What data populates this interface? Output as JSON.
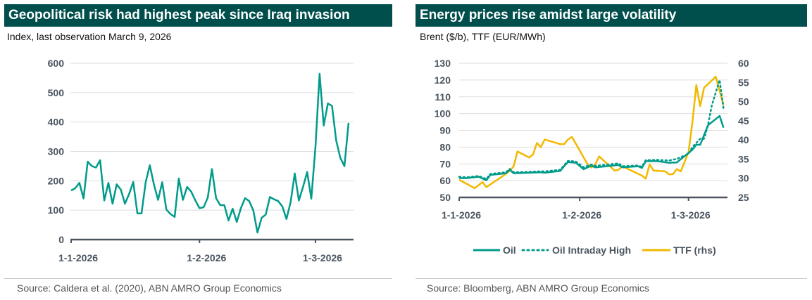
{
  "colors": {
    "header_bg": "#004f4c",
    "teal": "#009b8a",
    "yellow": "#f2b800",
    "axis": "#4a5560",
    "grid": "#dddddd"
  },
  "chart_data": [
    {
      "type": "line",
      "title": "Geopolitical risk had highest peak since Iraq invasion",
      "subtitle": "Index, last observation March 9, 2026",
      "source": "Source: Caldera et al. (2020), ABN AMRO Group Economics",
      "ylim": [
        0,
        600
      ],
      "yticks": [
        "0",
        "100",
        "200",
        "300",
        "400",
        "500",
        "600"
      ],
      "xticks": [
        {
          "date": "2026-01-01",
          "label": "1-1-2026"
        },
        {
          "date": "2026-02-01",
          "label": "1-2-2026"
        },
        {
          "date": "2026-03-01",
          "label": "1-3-2026"
        }
      ],
      "grid": true,
      "start_date": "2026-01-01",
      "series": [
        {
          "color": "#009b8a",
          "values": [
            167,
            175,
            193,
            140,
            265,
            250,
            245,
            270,
            133,
            193,
            122,
            188,
            170,
            122,
            155,
            196,
            89,
            89,
            195,
            253,
            187,
            135,
            195,
            102,
            87,
            77,
            208,
            135,
            179,
            163,
            133,
            107,
            110,
            143,
            240,
            141,
            117,
            117,
            65,
            105,
            60,
            107,
            141,
            131,
            99,
            24,
            74,
            85,
            145,
            137,
            131,
            113,
            70,
            127,
            225,
            133,
            179,
            230,
            139,
            314,
            564,
            388,
            463,
            455,
            338,
            278,
            250,
            397
          ]
        }
      ]
    },
    {
      "type": "line",
      "title": "Energy prices rise amidst large volatility",
      "subtitle": "Brent ($/b), TTF (EUR/MWh)",
      "source": "Source:  Bloomberg, ABN AMRO Group Economics",
      "ylim": [
        50,
        130
      ],
      "y2lim": [
        25,
        60
      ],
      "yticks": [
        "50",
        "60",
        "70",
        "80",
        "90",
        "100",
        "110",
        "120",
        "130"
      ],
      "y2ticks": [
        "25",
        "30",
        "35",
        "40",
        "45",
        "50",
        "55",
        "60"
      ],
      "xticks": [
        {
          "date": "2026-01-01",
          "label": "1-1-2026"
        },
        {
          "date": "2026-02-01",
          "label": "1-2-2026"
        },
        {
          "date": "2026-03-01",
          "label": "1-3-2026"
        }
      ],
      "grid": true,
      "legend_position": "bottom",
      "series": [
        {
          "name": "Oil",
          "axis": "left",
          "style": "solid",
          "color": "#009b8a",
          "points": [
            [
              "2026-01-01",
              61.5
            ],
            [
              "2026-01-03",
              61.5
            ],
            [
              "2026-01-06",
              62.3
            ],
            [
              "2026-01-08",
              60.2
            ],
            [
              "2026-01-09",
              63.4
            ],
            [
              "2026-01-13",
              64.4
            ],
            [
              "2026-01-14",
              66.5
            ],
            [
              "2026-01-15",
              64.4
            ],
            [
              "2026-01-20",
              64.8
            ],
            [
              "2026-01-22",
              65.0
            ],
            [
              "2026-01-23",
              64.7
            ],
            [
              "2026-01-27",
              65.8
            ],
            [
              "2026-01-28",
              68.6
            ],
            [
              "2026-01-29",
              71.1
            ],
            [
              "2026-01-31",
              70.7
            ],
            [
              "2026-02-02",
              66.8
            ],
            [
              "2026-02-04",
              68.9
            ],
            [
              "2026-02-05",
              67.9
            ],
            [
              "2026-02-11",
              69.3
            ],
            [
              "2026-02-12",
              67.9
            ],
            [
              "2026-02-16",
              68.6
            ],
            [
              "2026-02-17",
              67.6
            ],
            [
              "2026-02-18",
              71.6
            ],
            [
              "2026-02-21",
              71.6
            ],
            [
              "2026-02-24",
              70.7
            ],
            [
              "2026-02-26",
              70.9
            ],
            [
              "2026-03-02",
              78.4
            ],
            [
              "2026-03-03",
              81.4
            ],
            [
              "2026-03-04",
              81.4
            ],
            [
              "2026-03-06",
              93.0
            ],
            [
              "2026-03-09",
              98.6
            ],
            [
              "2026-03-10",
              91.6
            ]
          ]
        },
        {
          "name": "Oil Intraday High",
          "axis": "left",
          "style": "dotted",
          "color": "#009b8a",
          "points": [
            [
              "2026-01-01",
              62.3
            ],
            [
              "2026-01-03",
              62.0
            ],
            [
              "2026-01-06",
              62.8
            ],
            [
              "2026-01-08",
              61.0
            ],
            [
              "2026-01-09",
              64.0
            ],
            [
              "2026-01-13",
              65.0
            ],
            [
              "2026-01-14",
              67.0
            ],
            [
              "2026-01-15",
              65.0
            ],
            [
              "2026-01-20",
              65.3
            ],
            [
              "2026-01-22",
              65.6
            ],
            [
              "2026-01-23",
              65.5
            ],
            [
              "2026-01-27",
              66.5
            ],
            [
              "2026-01-28",
              69.2
            ],
            [
              "2026-01-29",
              71.8
            ],
            [
              "2026-01-31",
              71.4
            ],
            [
              "2026-02-02",
              68.0
            ],
            [
              "2026-02-04",
              69.6
            ],
            [
              "2026-02-05",
              68.8
            ],
            [
              "2026-02-11",
              70.3
            ],
            [
              "2026-02-12",
              68.6
            ],
            [
              "2026-02-16",
              69.0
            ],
            [
              "2026-02-17",
              68.2
            ],
            [
              "2026-02-18",
              72.2
            ],
            [
              "2026-02-21",
              72.4
            ],
            [
              "2026-02-24",
              72.0
            ],
            [
              "2026-02-26",
              73.0
            ],
            [
              "2026-03-01",
              76.0
            ],
            [
              "2026-03-02",
              80.0
            ],
            [
              "2026-03-04",
              85.0
            ],
            [
              "2026-03-05",
              85.0
            ],
            [
              "2026-03-06",
              93.0
            ],
            [
              "2026-03-07",
              105.0
            ],
            [
              "2026-03-09",
              120.0
            ],
            [
              "2026-03-10",
              103.0
            ]
          ]
        },
        {
          "name": "TTF (rhs)",
          "axis": "right",
          "style": "solid",
          "color": "#f2b800",
          "points": [
            [
              "2026-01-01",
              29.6
            ],
            [
              "2026-01-05",
              27.4
            ],
            [
              "2026-01-07",
              29.0
            ],
            [
              "2026-01-08",
              27.7
            ],
            [
              "2026-01-12",
              30.4
            ],
            [
              "2026-01-14",
              31.9
            ],
            [
              "2026-01-15",
              33.1
            ],
            [
              "2026-01-16",
              37.0
            ],
            [
              "2026-01-19",
              35.4
            ],
            [
              "2026-01-20",
              36.2
            ],
            [
              "2026-01-21",
              39.2
            ],
            [
              "2026-01-22",
              38.1
            ],
            [
              "2026-01-23",
              40.1
            ],
            [
              "2026-01-27",
              38.9
            ],
            [
              "2026-01-28",
              38.9
            ],
            [
              "2026-01-29",
              40.1
            ],
            [
              "2026-01-30",
              40.8
            ],
            [
              "2026-02-03",
              33.7
            ],
            [
              "2026-02-04",
              32.8
            ],
            [
              "2026-02-05",
              33.6
            ],
            [
              "2026-02-06",
              35.7
            ],
            [
              "2026-02-10",
              32.0
            ],
            [
              "2026-02-11",
              32.2
            ],
            [
              "2026-02-12",
              33.1
            ],
            [
              "2026-02-17",
              30.7
            ],
            [
              "2026-02-18",
              29.9
            ],
            [
              "2026-02-19",
              33.6
            ],
            [
              "2026-02-20",
              32.0
            ],
            [
              "2026-02-23",
              31.8
            ],
            [
              "2026-02-24",
              31.0
            ],
            [
              "2026-02-25",
              31.1
            ],
            [
              "2026-02-26",
              32.4
            ],
            [
              "2026-02-27",
              31.8
            ],
            [
              "2026-03-01",
              36.8
            ],
            [
              "2026-03-02",
              44.6
            ],
            [
              "2026-03-03",
              54.3
            ],
            [
              "2026-03-04",
              48.8
            ],
            [
              "2026-03-05",
              53.6
            ],
            [
              "2026-03-08",
              56.5
            ],
            [
              "2026-03-10",
              49.1
            ]
          ]
        }
      ]
    }
  ]
}
